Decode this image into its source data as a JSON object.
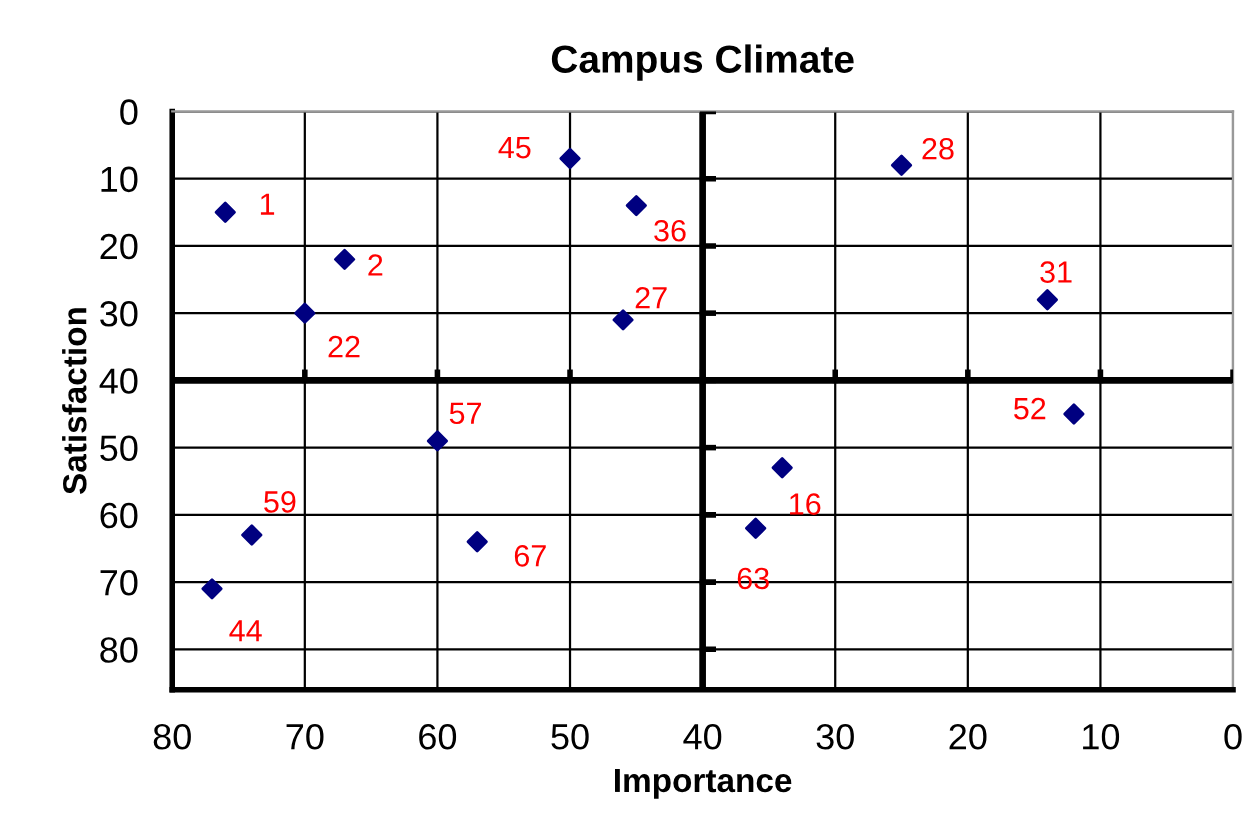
{
  "chart_data": {
    "type": "scatter",
    "title": "Campus Climate",
    "xlabel": "Importance",
    "ylabel": "Satisfaction",
    "x": [
      76,
      67,
      70,
      50,
      45,
      46,
      60,
      25,
      14,
      12,
      74,
      77,
      57,
      34,
      36
    ],
    "series": [
      {
        "color": "#000080",
        "values": [
          15,
          22,
          30,
          7,
          14,
          31,
          49,
          8,
          28,
          45,
          63,
          71,
          64,
          53,
          62
        ]
      }
    ],
    "annotations": [
      {
        "text": "1",
        "x": 76,
        "y": 15
      },
      {
        "text": "2",
        "x": 67,
        "y": 22
      },
      {
        "text": "22",
        "x": 70,
        "y": 30
      },
      {
        "text": "45",
        "x": 50,
        "y": 7
      },
      {
        "text": "36",
        "x": 45,
        "y": 14
      },
      {
        "text": "27",
        "x": 46,
        "y": 31
      },
      {
        "text": "57",
        "x": 60,
        "y": 49
      },
      {
        "text": "28",
        "x": 25,
        "y": 8
      },
      {
        "text": "31",
        "x": 14,
        "y": 28
      },
      {
        "text": "52",
        "x": 12,
        "y": 45
      },
      {
        "text": "59",
        "x": 74,
        "y": 63
      },
      {
        "text": "44",
        "x": 77,
        "y": 71
      },
      {
        "text": "67",
        "x": 57,
        "y": 64
      },
      {
        "text": "16",
        "x": 34,
        "y": 53
      },
      {
        "text": "63",
        "x": 36,
        "y": 62
      }
    ],
    "xlim": [
      80,
      0
    ],
    "xticks": [
      80,
      70,
      60,
      50,
      40,
      30,
      20,
      10,
      0
    ],
    "ylim": [
      86,
      0
    ],
    "yticks": [
      0,
      10,
      20,
      30,
      40,
      50,
      60,
      70,
      80
    ],
    "grid": true,
    "marker": "diamond"
  }
}
